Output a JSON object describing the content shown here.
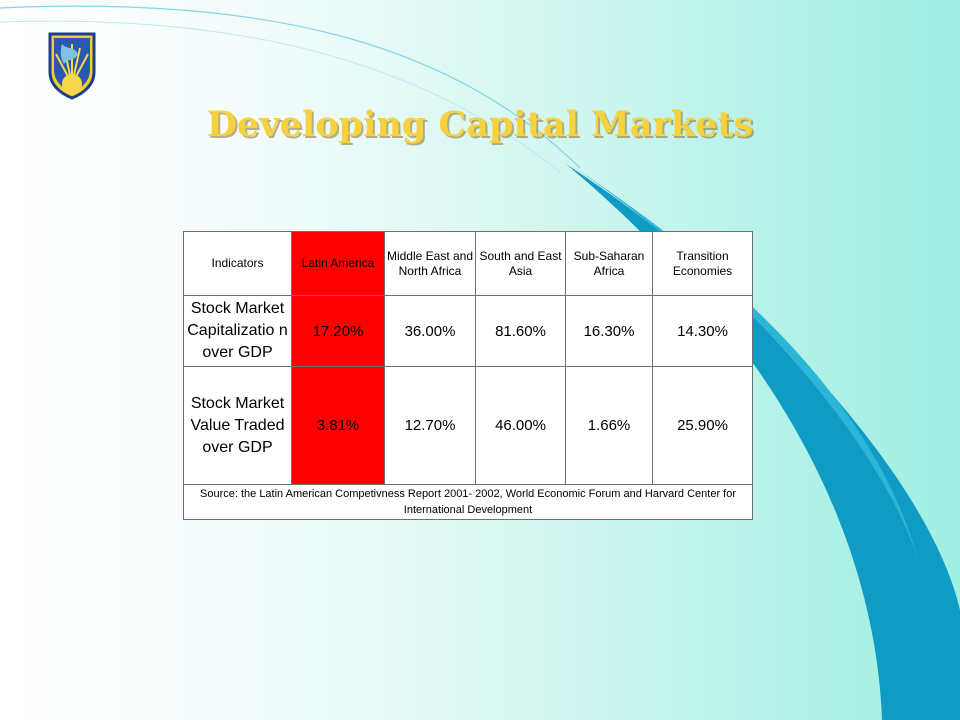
{
  "slide": {
    "title": "Developing Capital Markets",
    "logo_icon": "sun-globe-shield-icon",
    "colors": {
      "title": "#f7d23e",
      "highlight_column": "#ff0000",
      "swoosh": "#0e9fc6",
      "background_right": "#9fefe3"
    }
  },
  "table": {
    "columns": [
      "Indicators",
      "Latin America",
      "Middle East and North Africa",
      "South and East Asia",
      "Sub-Saharan Africa",
      "Transition Economies"
    ],
    "highlighted_column": "Latin America",
    "rows": [
      {
        "label": "Stock Market Capitalizatio n over GDP",
        "values": [
          "17.20%",
          "36.00%",
          "81.60%",
          "16.30%",
          "14.30%"
        ]
      },
      {
        "label": "Stock Market Value Traded over GDP",
        "values": [
          "3.81%",
          "12.70%",
          "46.00%",
          "1.66%",
          "25.90%"
        ]
      }
    ],
    "source": "Source: the Latin American Competivness Report 2001- 2002, World Economic Forum and Harvard Center for International Development"
  }
}
